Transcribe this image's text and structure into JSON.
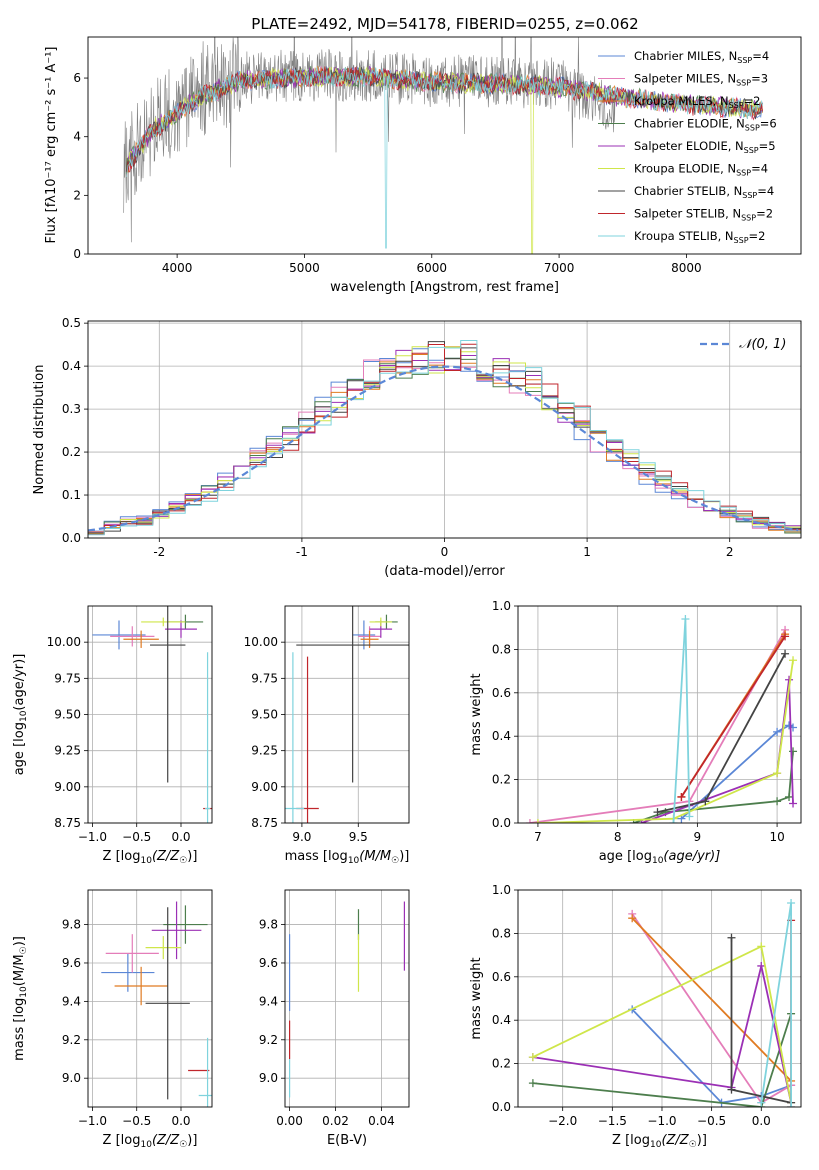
{
  "title": "PLATE=2492, MJD=54178, FIBERID=0255, z=0.062",
  "colors": {
    "blue": "#5b87d6",
    "pink": "#e47db9",
    "orange": "#e07b22",
    "green": "#4d7e4d",
    "purple": "#9b30b5",
    "yellow": "#cfe64a",
    "dark": "#444444",
    "red": "#c0262c",
    "cyan": "#7fd3dd",
    "gray": "#808080",
    "grid": "#b0b0b0"
  },
  "chart_data": [
    {
      "id": "spectrum",
      "type": "line",
      "xlabel": "wavelength [Angstrom, rest frame]",
      "ylabel": "Flux [fλ10⁻¹⁷ erg cm⁻² s⁻¹ A⁻¹]",
      "xlim": [
        3300,
        8900
      ],
      "ylim": [
        0,
        7.4
      ],
      "xticks": [
        4000,
        5000,
        6000,
        7000,
        8000
      ],
      "yticks": [
        0,
        2,
        4,
        6
      ],
      "grid": false,
      "legend_position": "top-right",
      "legend": [
        {
          "label": "Chabrier MILES, N",
          "sub": "SSP",
          "suffix": "=4",
          "color": "#5b87d6"
        },
        {
          "label": "Salpeter MILES, N",
          "sub": "SSP",
          "suffix": "=3",
          "color": "#e47db9"
        },
        {
          "label": "Kroupa MILES, N",
          "sub": "SSP",
          "suffix": "=2",
          "color": "#e07b22"
        },
        {
          "label": "Chabrier ELODIE, N",
          "sub": "SSP",
          "suffix": "=6",
          "color": "#4d7e4d"
        },
        {
          "label": "Salpeter ELODIE, N",
          "sub": "SSP",
          "suffix": "=5",
          "color": "#9b30b5"
        },
        {
          "label": "Kroupa ELODIE, N",
          "sub": "SSP",
          "suffix": "=4",
          "color": "#cfe64a"
        },
        {
          "label": "Chabrier STELIB, N",
          "sub": "SSP",
          "suffix": "=4",
          "color": "#444444"
        },
        {
          "label": "Salpeter STELIB, N",
          "sub": "SSP",
          "suffix": "=2",
          "color": "#c0262c"
        },
        {
          "label": "Kroupa STELIB, N",
          "sub": "SSP",
          "suffix": "=2",
          "color": "#7fd3dd"
        }
      ],
      "data_gray_shape": {
        "x": [
          3600,
          3800,
          4000,
          4200,
          4500,
          5000,
          5500,
          6000,
          6500,
          7000,
          7400
        ],
        "y": [
          3.0,
          4.3,
          4.9,
          5.5,
          6.0,
          6.1,
          6.1,
          5.9,
          5.9,
          5.8,
          5.0
        ]
      },
      "model_shape": {
        "x": [
          3600,
          3800,
          4000,
          4200,
          4500,
          5000,
          5500,
          6000,
          6500,
          7000,
          7500,
          8000,
          8500
        ],
        "y": [
          3.0,
          4.2,
          4.8,
          5.4,
          5.9,
          6.05,
          6.05,
          5.85,
          5.8,
          5.7,
          5.35,
          5.1,
          4.95
        ]
      }
    },
    {
      "id": "residuals",
      "type": "histogram",
      "xlabel": "(data-model)/error",
      "ylabel": "Normed distribution",
      "xlim": [
        -2.5,
        2.5
      ],
      "ylim": [
        0,
        0.505
      ],
      "xticks": [
        -2,
        -1,
        0,
        1,
        2
      ],
      "yticks": [
        0.0,
        0.1,
        0.2,
        0.3,
        0.4,
        0.5
      ],
      "ytick_labels": [
        "0.0",
        "0.1",
        "0.2",
        "0.3",
        "0.4",
        "0.5"
      ],
      "grid": true,
      "legend": "𝒩(0, 1)",
      "legend_position": "top-right",
      "series": [
        {
          "name": "Chabrier MILES",
          "color": "#5b87d6",
          "values": [
            0.02,
            0.03,
            0.04,
            0.05,
            0.06,
            0.07,
            0.08,
            0.1,
            0.12,
            0.15,
            0.18,
            0.22,
            0.25,
            0.28,
            0.31,
            0.34,
            0.36,
            0.38,
            0.44,
            0.41,
            0.4,
            0.38,
            0.39,
            0.37,
            0.36,
            0.35,
            0.34,
            0.32,
            0.3,
            0.28,
            0.25,
            0.22,
            0.19,
            0.16,
            0.14,
            0.12,
            0.1,
            0.08,
            0.07,
            0.06,
            0.04,
            0.03,
            0.03,
            0.02
          ]
        },
        {
          "name": "Salpeter MILES",
          "color": "#e47db9",
          "values": [
            0.02,
            0.03,
            0.03,
            0.04,
            0.05,
            0.06,
            0.07,
            0.09,
            0.11,
            0.13,
            0.17,
            0.2,
            0.24,
            0.28,
            0.3,
            0.32,
            0.35,
            0.37,
            0.46,
            0.43,
            0.42,
            0.38,
            0.41,
            0.38,
            0.37,
            0.35,
            0.33,
            0.31,
            0.29,
            0.27,
            0.24,
            0.21,
            0.18,
            0.15,
            0.13,
            0.11,
            0.1,
            0.08,
            0.06,
            0.05,
            0.04,
            0.03,
            0.02,
            0.02
          ]
        }
      ],
      "normal_curve": "N(0,1) pdf"
    },
    {
      "id": "age-vs-Z",
      "type": "scatter",
      "xlabel": "Z [log10(Z/Z☉)]",
      "ylabel": "age  [log10(age/yr)]",
      "xlim": [
        -1.05,
        0.35
      ],
      "ylim": [
        8.75,
        10.25
      ],
      "xticks": [
        -1.0,
        -0.5,
        0.0
      ],
      "xtick_labels": [
        "−1.0",
        "−0.5",
        "0.0"
      ],
      "yticks": [
        8.75,
        9.0,
        9.25,
        9.5,
        9.75,
        10.0
      ],
      "ytick_labels": [
        "8.75",
        "9.00",
        "9.25",
        "9.50",
        "9.75",
        "10.00"
      ],
      "grid": true,
      "points": [
        {
          "x": -0.7,
          "y": 10.05,
          "xerr": 0.3,
          "yerr": 0.1,
          "color": "#5b87d6"
        },
        {
          "x": -0.55,
          "y": 10.04,
          "xerr": 0.25,
          "yerr": 0.07,
          "color": "#e47db9"
        },
        {
          "x": -0.45,
          "y": 10.02,
          "xerr": 0.2,
          "yerr": 0.06,
          "color": "#e07b22"
        },
        {
          "x": 0.05,
          "y": 10.14,
          "xerr": 0.2,
          "yerr": 0.05,
          "color": "#4d7e4d"
        },
        {
          "x": 0.0,
          "y": 10.09,
          "xerr": 0.18,
          "yerr": 0.06,
          "color": "#9b30b5"
        },
        {
          "x": -0.2,
          "y": 10.14,
          "xerr": 0.25,
          "yerr": 0.03,
          "color": "#cfe64a"
        },
        {
          "x": -0.15,
          "y": 9.98,
          "xerr": 0.2,
          "yerr": 0.95,
          "color": "#444444"
        },
        {
          "x": 0.3,
          "y": 8.85,
          "xerr": 0.05,
          "yerr": 0.0,
          "color": "#c0262c"
        },
        {
          "x": 0.3,
          "y": 8.85,
          "xerr": 0.03,
          "yerr": 1.08,
          "color": "#7fd3dd"
        }
      ]
    },
    {
      "id": "age-vs-mass",
      "type": "scatter",
      "xlabel": "mass [log10(M/M☉)]",
      "ylabel": "",
      "xlim": [
        8.85,
        9.95
      ],
      "ylim": [
        8.75,
        10.25
      ],
      "xticks": [
        9.0,
        9.5
      ],
      "xtick_labels": [
        "9.0",
        "9.5"
      ],
      "yticks": [
        8.75,
        9.0,
        9.25,
        9.5,
        9.75,
        10.0
      ],
      "ytick_labels": [
        "8.75",
        "9.00",
        "9.25",
        "9.50",
        "9.75",
        "10.00"
      ],
      "grid": true,
      "points": [
        {
          "x": 9.55,
          "y": 10.05,
          "xerr": 0.1,
          "yerr": 0.1,
          "color": "#5b87d6"
        },
        {
          "x": 9.6,
          "y": 10.04,
          "xerr": 0.1,
          "yerr": 0.07,
          "color": "#e47db9"
        },
        {
          "x": 9.6,
          "y": 10.02,
          "xerr": 0.08,
          "yerr": 0.06,
          "color": "#e07b22"
        },
        {
          "x": 9.75,
          "y": 10.14,
          "xerr": 0.1,
          "yerr": 0.05,
          "color": "#4d7e4d"
        },
        {
          "x": 9.7,
          "y": 10.09,
          "xerr": 0.1,
          "yerr": 0.06,
          "color": "#9b30b5"
        },
        {
          "x": 9.7,
          "y": 10.14,
          "xerr": 0.1,
          "yerr": 0.03,
          "color": "#cfe64a"
        },
        {
          "x": 9.45,
          "y": 9.98,
          "xerr": 0.5,
          "yerr": 0.95,
          "color": "#444444"
        },
        {
          "x": 9.05,
          "y": 8.85,
          "xerr": 0.1,
          "yerr": 1.05,
          "color": "#c0262c"
        },
        {
          "x": 8.92,
          "y": 8.85,
          "xerr": 0.1,
          "yerr": 1.08,
          "color": "#7fd3dd"
        }
      ]
    },
    {
      "id": "weight-vs-age",
      "type": "line",
      "xlabel": "age  [log10(age/yr)]",
      "ylabel": "mass weight",
      "xlim": [
        6.75,
        10.3
      ],
      "ylim": [
        0,
        1
      ],
      "xticks": [
        7,
        8,
        9,
        10
      ],
      "yticks": [
        0.0,
        0.2,
        0.4,
        0.6,
        0.8,
        1.0
      ],
      "ytick_labels": [
        "0.0",
        "0.2",
        "0.4",
        "0.6",
        "0.8",
        "1.0"
      ],
      "grid": true,
      "series": [
        {
          "name": "Chabrier MILES",
          "color": "#5b87d6",
          "x": [
            8.8,
            10.0,
            10.15,
            10.2
          ],
          "y": [
            0.02,
            0.42,
            0.45,
            0.44
          ]
        },
        {
          "name": "Salpeter MILES",
          "color": "#e47db9",
          "x": [
            6.9,
            8.9,
            10.1
          ],
          "y": [
            0.0,
            0.1,
            0.89
          ]
        },
        {
          "name": "Kroupa MILES",
          "color": "#e07b22",
          "x": [
            8.8,
            10.1
          ],
          "y": [
            0.12,
            0.87
          ]
        },
        {
          "name": "Chabrier ELODIE",
          "color": "#4d7e4d",
          "x": [
            8.2,
            8.6,
            8.9,
            10.0,
            10.15,
            10.2
          ],
          "y": [
            0.0,
            0.05,
            0.06,
            0.1,
            0.12,
            0.33
          ]
        },
        {
          "name": "Salpeter ELODIE",
          "color": "#9b30b5",
          "x": [
            8.3,
            8.9,
            10.0,
            10.15,
            10.2
          ],
          "y": [
            0.0,
            0.08,
            0.23,
            0.66,
            0.09
          ]
        },
        {
          "name": "Kroupa ELODIE",
          "color": "#cfe64a",
          "x": [
            7.0,
            8.7,
            10.0,
            10.2
          ],
          "y": [
            0.0,
            0.02,
            0.23,
            0.75
          ]
        },
        {
          "name": "Chabrier STELIB",
          "color": "#444444",
          "x": [
            8.5,
            9.1,
            10.1
          ],
          "y": [
            0.05,
            0.1,
            0.78
          ]
        },
        {
          "name": "Salpeter STELIB",
          "color": "#c0262c",
          "x": [
            8.8,
            10.1
          ],
          "y": [
            0.12,
            0.86
          ]
        },
        {
          "name": "Kroupa STELIB",
          "color": "#7fd3dd",
          "x": [
            8.7,
            8.85,
            8.9
          ],
          "y": [
            0.0,
            0.94,
            0.03
          ]
        }
      ]
    },
    {
      "id": "mass-vs-Z",
      "type": "scatter",
      "xlabel": "Z [log10(Z/Z☉)]",
      "ylabel": "mass [log10(M/M☉)]",
      "xlim": [
        -1.05,
        0.35
      ],
      "ylim": [
        8.85,
        9.98
      ],
      "xticks": [
        -1.0,
        -0.5,
        0.0
      ],
      "xtick_labels": [
        "−1.0",
        "−0.5",
        "0.0"
      ],
      "yticks": [
        9.0,
        9.2,
        9.4,
        9.6,
        9.8
      ],
      "ytick_labels": [
        "9.0",
        "9.2",
        "9.4",
        "9.6",
        "9.8"
      ],
      "grid": true,
      "points": [
        {
          "x": -0.6,
          "y": 9.55,
          "xerr": 0.3,
          "yerr": 0.1,
          "color": "#5b87d6"
        },
        {
          "x": -0.55,
          "y": 9.65,
          "xerr": 0.3,
          "yerr": 0.1,
          "color": "#e47db9"
        },
        {
          "x": -0.45,
          "y": 9.48,
          "xerr": 0.3,
          "yerr": 0.1,
          "color": "#e07b22"
        },
        {
          "x": 0.05,
          "y": 9.8,
          "xerr": 0.25,
          "yerr": 0.1,
          "color": "#4d7e4d"
        },
        {
          "x": -0.05,
          "y": 9.77,
          "xerr": 0.28,
          "yerr": 0.15,
          "color": "#9b30b5"
        },
        {
          "x": -0.2,
          "y": 9.68,
          "xerr": 0.2,
          "yerr": 0.06,
          "color": "#cfe64a"
        },
        {
          "x": -0.15,
          "y": 9.39,
          "xerr": 0.25,
          "yerr": 0.5,
          "color": "#444444"
        },
        {
          "x": 0.2,
          "y": 9.04,
          "xerr": 0.12,
          "yerr": 0.0,
          "color": "#c0262c"
        },
        {
          "x": 0.3,
          "y": 8.91,
          "xerr": 0.1,
          "yerr": 0.3,
          "color": "#7fd3dd"
        }
      ]
    },
    {
      "id": "mass-vs-EBV",
      "type": "scatter",
      "xlabel": "E(B-V)",
      "ylabel": "",
      "xlim": [
        -0.002,
        0.052
      ],
      "ylim": [
        8.85,
        9.98
      ],
      "xticks": [
        0.0,
        0.02,
        0.04
      ],
      "xtick_labels": [
        "0.00",
        "0.02",
        "0.04"
      ],
      "yticks": [
        9.0,
        9.2,
        9.4,
        9.6,
        9.8
      ],
      "ytick_labels": [
        "9.0",
        "9.2",
        "9.4",
        "9.6",
        "9.8"
      ],
      "grid": true,
      "points": [
        {
          "x": 0.0,
          "y": 9.55,
          "yerr": 0.2,
          "color": "#5b87d6"
        },
        {
          "x": 0.0,
          "y": 9.2,
          "yerr": 0.1,
          "color": "#c0262c"
        },
        {
          "x": 0.03,
          "y": 9.8,
          "yerr": 0.08,
          "color": "#4d7e4d"
        },
        {
          "x": 0.03,
          "y": 9.6,
          "yerr": 0.15,
          "color": "#cfe64a"
        },
        {
          "x": 0.05,
          "y": 9.74,
          "yerr": 0.18,
          "color": "#9b30b5"
        },
        {
          "x": 0.0,
          "y": 9.0,
          "yerr": 0.1,
          "color": "#7fd3dd"
        }
      ]
    },
    {
      "id": "weight-vs-Z",
      "type": "line",
      "xlabel": "Z [log10(Z/Z☉)]",
      "ylabel": "mass weight",
      "xlim": [
        -2.45,
        0.4
      ],
      "ylim": [
        0,
        1
      ],
      "xticks": [
        -2.0,
        -1.5,
        -1.0,
        -0.5,
        0.0
      ],
      "xtick_labels": [
        "−2.0",
        "−1.5",
        "−1.0",
        "−0.5",
        "0.0"
      ],
      "yticks": [
        0.0,
        0.2,
        0.4,
        0.6,
        0.8,
        1.0
      ],
      "ytick_labels": [
        "0.0",
        "0.2",
        "0.4",
        "0.6",
        "0.8",
        "1.0"
      ],
      "grid": true,
      "series": [
        {
          "name": "Chabrier MILES",
          "color": "#5b87d6",
          "x": [
            -1.3,
            -0.4,
            0.0,
            0.3
          ],
          "y": [
            0.45,
            0.02,
            0.05,
            0.1
          ]
        },
        {
          "name": "Salpeter MILES",
          "color": "#e47db9",
          "x": [
            -1.3,
            0.0,
            0.3
          ],
          "y": [
            0.89,
            0.02,
            0.1
          ]
        },
        {
          "name": "Kroupa MILES",
          "color": "#e07b22",
          "x": [
            -1.3,
            0.3
          ],
          "y": [
            0.87,
            0.12
          ]
        },
        {
          "name": "Chabrier ELODIE",
          "color": "#4d7e4d",
          "x": [
            -2.3,
            0.0,
            0.3
          ],
          "y": [
            0.11,
            0.0,
            0.43
          ]
        },
        {
          "name": "Salpeter ELODIE",
          "color": "#9b30b5",
          "x": [
            -2.3,
            -0.3,
            0.0,
            0.3
          ],
          "y": [
            0.23,
            0.09,
            0.65,
            0.02
          ]
        },
        {
          "name": "Kroupa ELODIE",
          "color": "#cfe64a",
          "x": [
            -2.3,
            0.0,
            0.3
          ],
          "y": [
            0.23,
            0.74,
            0.02
          ]
        },
        {
          "name": "Chabrier STELIB",
          "color": "#444444",
          "x": [
            -0.3,
            -0.3,
            0.3
          ],
          "y": [
            0.78,
            0.08,
            0.02
          ]
        },
        {
          "name": "Salpeter STELIB",
          "color": "#c0262c",
          "x": [
            0.3,
            0.3
          ],
          "y": [
            0.86,
            0.0
          ]
        },
        {
          "name": "Kroupa STELIB",
          "color": "#7fd3dd",
          "x": [
            0.0,
            0.3,
            0.3
          ],
          "y": [
            0.02,
            0.94,
            0.0
          ]
        }
      ]
    }
  ]
}
